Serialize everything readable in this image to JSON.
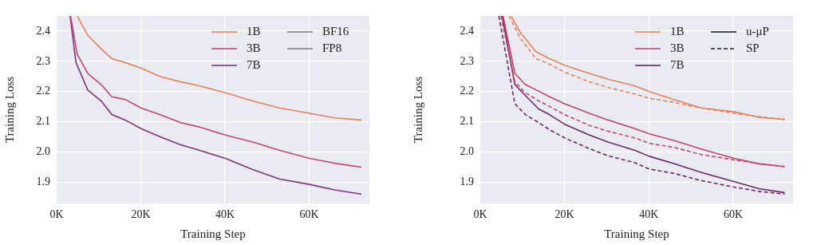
{
  "chart_data": [
    {
      "type": "line",
      "xlabel": "Training Step",
      "ylabel": "Training Loss",
      "xlim": [
        0,
        74.3
      ],
      "ylim": [
        1.83,
        2.45
      ],
      "xticks": [
        {
          "value": 0,
          "label": "0K"
        },
        {
          "value": 20,
          "label": "20K"
        },
        {
          "value": 40,
          "label": "40K"
        },
        {
          "value": 60,
          "label": "60K"
        }
      ],
      "yticks": [
        1.9,
        {
          "value": 2,
          "label": "2.0"
        },
        2.1,
        2.2,
        2.3,
        2.4
      ],
      "grid": true,
      "legend": "top right",
      "marker": "none",
      "series": [
        {
          "name": "1B",
          "color": "#e8825a",
          "line_style": "solid",
          "x": [
            4.9,
            5.6,
            7.4,
            10.6,
            13.1,
            16.3,
            20,
            24.5,
            29.5,
            33.9,
            40.1,
            46.6,
            52.9,
            60.1,
            66.1,
            72.4
          ],
          "values": [
            2.45,
            2.432,
            2.386,
            2.341,
            2.309,
            2.296,
            2.278,
            2.25,
            2.232,
            2.219,
            2.196,
            2.169,
            2.146,
            2.128,
            2.113,
            2.106
          ]
        },
        {
          "name": "3B",
          "color": "#c4466a",
          "line_style": "solid",
          "x": [
            3.3,
            4.9,
            7.4,
            10.6,
            13.1,
            16.3,
            20,
            24.5,
            29.5,
            33.9,
            40.1,
            46.6,
            52.9,
            60.1,
            66.1,
            72.4
          ],
          "values": [
            2.45,
            2.323,
            2.26,
            2.223,
            2.183,
            2.174,
            2.146,
            2.124,
            2.097,
            2.083,
            2.056,
            2.033,
            2.006,
            1.979,
            1.963,
            1.95
          ]
        },
        {
          "name": "7B",
          "color": "#7a3777",
          "line_style": "solid",
          "x": [
            3.2,
            4.6,
            7.4,
            10.6,
            13.1,
            16.3,
            20,
            24.5,
            29.5,
            33.9,
            40.1,
            46.6,
            52.9,
            60.1,
            66.1,
            72.4
          ],
          "values": [
            2.45,
            2.296,
            2.205,
            2.169,
            2.124,
            2.106,
            2.078,
            2.051,
            2.024,
            2.006,
            1.979,
            1.942,
            1.911,
            1.893,
            1.875,
            1.861
          ]
        },
        {
          "name": "BF16",
          "color": "#7f7f7f",
          "line_style": "solid"
        },
        {
          "name": "FP8",
          "color": "#7f7f7f",
          "line_style": "solid"
        }
      ]
    },
    {
      "type": "line",
      "xlabel": "Training Step",
      "ylabel": "Training Loss",
      "xlim": [
        0,
        74.2
      ],
      "ylim": [
        1.83,
        2.45
      ],
      "xticks": [
        {
          "value": 0,
          "label": "0K"
        },
        {
          "value": 20,
          "label": "20K"
        },
        {
          "value": 40,
          "label": "40K"
        },
        {
          "value": 60,
          "label": "60K"
        }
      ],
      "yticks": [
        1.9,
        {
          "value": 2,
          "label": "2.0"
        },
        2.1,
        2.2,
        2.3,
        2.4
      ],
      "grid": true,
      "legend": "top right",
      "marker": "none",
      "series": [
        {
          "name": "1B",
          "color": "#e8825a",
          "line_style": "solid",
          "x": [
            7.3,
            9.5,
            13.2,
            16.4,
            20,
            25.9,
            30.3,
            36.6,
            40.1,
            46.1,
            52.4,
            60.3,
            66.2,
            72.2
          ],
          "values": [
            2.45,
            2.395,
            2.332,
            2.309,
            2.287,
            2.26,
            2.241,
            2.219,
            2.2,
            2.173,
            2.146,
            2.133,
            2.115,
            2.108
          ]
        },
        {
          "color": "#e8825a",
          "line_style": "dashed",
          "x": [
            6.8,
            9.5,
            13.2,
            16.4,
            20,
            25.9,
            30.3,
            36.6,
            40.1,
            46.1,
            52.4,
            60.3,
            66.2,
            72.2
          ],
          "values": [
            2.45,
            2.377,
            2.309,
            2.291,
            2.264,
            2.232,
            2.214,
            2.192,
            2.178,
            2.164,
            2.146,
            2.128,
            2.117,
            2.108
          ]
        },
        {
          "name": "3B",
          "color": "#c4466a",
          "line_style": "solid",
          "x": [
            5.4,
            8.2,
            10.7,
            13.9,
            16.4,
            20,
            25.9,
            30.3,
            36.6,
            40.1,
            46.1,
            52.4,
            60.3,
            66.2,
            72.2
          ],
          "values": [
            2.45,
            2.26,
            2.223,
            2.201,
            2.183,
            2.16,
            2.128,
            2.106,
            2.078,
            2.06,
            2.038,
            2.01,
            1.979,
            1.961,
            1.952
          ]
        },
        {
          "color": "#c4466a",
          "line_style": "dashed",
          "x": [
            4.9,
            8.2,
            10.7,
            13.9,
            16.4,
            20,
            25.9,
            30.3,
            36.6,
            40.1,
            46.1,
            52.4,
            60.3,
            66.2,
            72.2
          ],
          "values": [
            2.45,
            2.232,
            2.196,
            2.169,
            2.151,
            2.124,
            2.088,
            2.069,
            2.047,
            2.029,
            2.015,
            1.992,
            1.974,
            1.962,
            1.952
          ]
        },
        {
          "name": "7B",
          "color": "#6a2a66",
          "line_style": "solid",
          "x": [
            5.2,
            8.2,
            10.7,
            13.9,
            16.4,
            20,
            25.9,
            30.3,
            36.6,
            40.1,
            46.1,
            52.4,
            60.3,
            66.2,
            72.2
          ],
          "values": [
            2.45,
            2.223,
            2.187,
            2.142,
            2.124,
            2.092,
            2.056,
            2.033,
            2.006,
            1.986,
            1.961,
            1.933,
            1.902,
            1.879,
            1.866
          ]
        },
        {
          "color": "#6a2a66",
          "line_style": "dashed",
          "x": [
            4.4,
            8.2,
            10.7,
            13.9,
            16.4,
            20,
            25.9,
            30.3,
            36.6,
            40.1,
            46.1,
            52.4,
            60.3,
            66.2,
            72.2
          ],
          "values": [
            2.45,
            2.16,
            2.124,
            2.097,
            2.074,
            2.047,
            2.011,
            1.988,
            1.965,
            1.944,
            1.929,
            1.906,
            1.884,
            1.87,
            1.861
          ]
        },
        {
          "name": "u-μP",
          "color": "#2b1b33",
          "line_style": "solid"
        },
        {
          "name": "SP",
          "color": "#2b1b33",
          "line_style": "dashed"
        }
      ]
    }
  ]
}
